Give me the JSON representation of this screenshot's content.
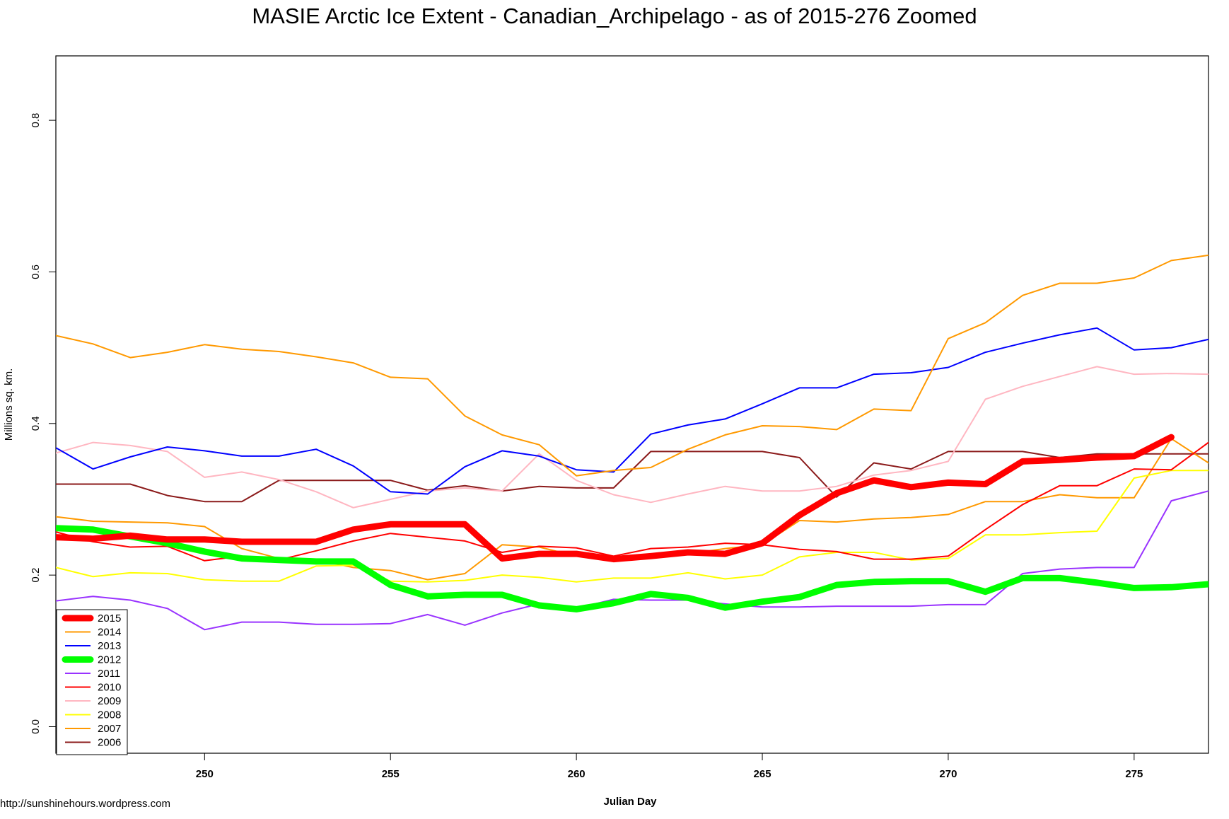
{
  "chart_data": {
    "type": "line",
    "title": "MASIE Arctic Ice Extent - Canadian_Archipelago - as of 2015-276 Zoomed",
    "xlabel": "Julian Day",
    "ylabel": "Millions sq. km.",
    "credit": "http://sunshinehours.wordpress.com",
    "xlim": [
      246,
      277
    ],
    "ylim": [
      -0.035,
      0.885
    ],
    "x_ticks": [
      250,
      255,
      260,
      265,
      270,
      275
    ],
    "y_ticks": [
      0.0,
      0.2,
      0.4,
      0.6,
      0.8
    ],
    "y_tick_labels": [
      "0.0",
      "0.2",
      "0.4",
      "0.6",
      "0.8"
    ],
    "legend_position": "bottom-left",
    "x": [
      246,
      247,
      248,
      249,
      250,
      251,
      252,
      253,
      254,
      255,
      256,
      257,
      258,
      259,
      260,
      261,
      262,
      263,
      264,
      265,
      266,
      267,
      268,
      269,
      270,
      271,
      272,
      273,
      274,
      275,
      276,
      277
    ],
    "series": [
      {
        "name": "2006",
        "color": "#8B1A1A",
        "bold": false,
        "values": [
          0.32,
          0.32,
          0.32,
          0.305,
          0.297,
          0.297,
          0.325,
          0.325,
          0.325,
          0.325,
          0.312,
          0.318,
          0.311,
          0.317,
          0.315,
          0.315,
          0.363,
          0.363,
          0.363,
          0.363,
          0.355,
          0.303,
          0.348,
          0.34,
          0.363,
          0.363,
          0.363,
          0.355,
          0.36,
          0.36,
          0.36,
          0.36
        ]
      },
      {
        "name": "2007",
        "color": "#FF9900",
        "bold": false,
        "values": [
          0.277,
          0.271,
          0.27,
          0.269,
          0.264,
          0.235,
          0.222,
          0.22,
          0.21,
          0.206,
          0.194,
          0.202,
          0.24,
          0.237,
          0.225,
          0.22,
          0.225,
          0.228,
          0.235,
          0.24,
          0.272,
          0.27,
          0.274,
          0.276,
          0.28,
          0.297,
          0.297,
          0.306,
          0.302,
          0.302,
          0.38,
          0.348
        ]
      },
      {
        "name": "2008",
        "color": "#FFFF00",
        "bold": false,
        "values": [
          0.21,
          0.198,
          0.203,
          0.202,
          0.194,
          0.192,
          0.192,
          0.212,
          0.213,
          0.192,
          0.191,
          0.193,
          0.2,
          0.197,
          0.191,
          0.196,
          0.196,
          0.203,
          0.195,
          0.2,
          0.224,
          0.23,
          0.23,
          0.22,
          0.222,
          0.253,
          0.253,
          0.256,
          0.258,
          0.328,
          0.338,
          0.338
        ]
      },
      {
        "name": "2009",
        "color": "#FFB6C1",
        "bold": false,
        "values": [
          0.361,
          0.375,
          0.371,
          0.363,
          0.329,
          0.336,
          0.326,
          0.31,
          0.289,
          0.3,
          0.311,
          0.315,
          0.311,
          0.36,
          0.325,
          0.306,
          0.296,
          0.307,
          0.317,
          0.311,
          0.311,
          0.317,
          0.332,
          0.338,
          0.35,
          0.432,
          0.449,
          0.462,
          0.475,
          0.465,
          0.466,
          0.465
        ]
      },
      {
        "name": "2010",
        "color": "#FF0000",
        "bold": false,
        "values": [
          0.257,
          0.244,
          0.237,
          0.238,
          0.219,
          0.225,
          0.22,
          0.232,
          0.245,
          0.255,
          0.25,
          0.245,
          0.23,
          0.238,
          0.236,
          0.225,
          0.235,
          0.237,
          0.242,
          0.24,
          0.234,
          0.231,
          0.221,
          0.221,
          0.225,
          0.26,
          0.293,
          0.318,
          0.318,
          0.34,
          0.339,
          0.375
        ]
      },
      {
        "name": "2011",
        "color": "#9933FF",
        "bold": false,
        "values": [
          0.166,
          0.172,
          0.167,
          0.156,
          0.128,
          0.138,
          0.138,
          0.135,
          0.135,
          0.136,
          0.148,
          0.134,
          0.15,
          0.162,
          0.156,
          0.168,
          0.167,
          0.167,
          0.162,
          0.158,
          0.158,
          0.159,
          0.159,
          0.159,
          0.161,
          0.161,
          0.202,
          0.208,
          0.21,
          0.21,
          0.298,
          0.311
        ]
      },
      {
        "name": "2012",
        "color": "#00FF00",
        "bold": true,
        "values": [
          0.262,
          0.26,
          0.251,
          0.242,
          0.231,
          0.222,
          0.22,
          0.218,
          0.218,
          0.187,
          0.172,
          0.174,
          0.174,
          0.16,
          0.155,
          0.163,
          0.175,
          0.17,
          0.157,
          0.165,
          0.171,
          0.187,
          0.191,
          0.192,
          0.192,
          0.178,
          0.196,
          0.196,
          0.19,
          0.183,
          0.184,
          0.188
        ]
      },
      {
        "name": "2013",
        "color": "#0000FF",
        "bold": false,
        "values": [
          0.368,
          0.34,
          0.356,
          0.369,
          0.364,
          0.357,
          0.357,
          0.366,
          0.344,
          0.31,
          0.307,
          0.343,
          0.364,
          0.357,
          0.339,
          0.336,
          0.386,
          0.398,
          0.406,
          0.426,
          0.447,
          0.447,
          0.465,
          0.467,
          0.474,
          0.494,
          0.506,
          0.517,
          0.526,
          0.497,
          0.5,
          0.511
        ]
      },
      {
        "name": "2014",
        "color": "#FF9900",
        "bold": false,
        "values": [
          0.516,
          0.505,
          0.487,
          0.494,
          0.504,
          0.498,
          0.495,
          0.488,
          0.48,
          0.461,
          0.459,
          0.41,
          0.385,
          0.372,
          0.331,
          0.338,
          0.342,
          0.366,
          0.385,
          0.397,
          0.396,
          0.392,
          0.419,
          0.417,
          0.512,
          0.533,
          0.569,
          0.585,
          0.585,
          0.592,
          0.615,
          0.622
        ]
      },
      {
        "name": "2015",
        "color": "#FF0000",
        "bold": true,
        "values": [
          0.25,
          0.248,
          0.252,
          0.247,
          0.247,
          0.244,
          0.244,
          0.244,
          0.26,
          0.267,
          0.267,
          0.267,
          0.222,
          0.228,
          0.228,
          0.221,
          0.225,
          0.23,
          0.228,
          0.242,
          0.279,
          0.308,
          0.325,
          0.316,
          0.322,
          0.32,
          0.35,
          0.352,
          0.355,
          0.357,
          0.382,
          null
        ]
      }
    ],
    "legend_entries": [
      "2015",
      "2014",
      "2013",
      "2012",
      "2011",
      "2010",
      "2009",
      "2008",
      "2007",
      "2006"
    ]
  }
}
